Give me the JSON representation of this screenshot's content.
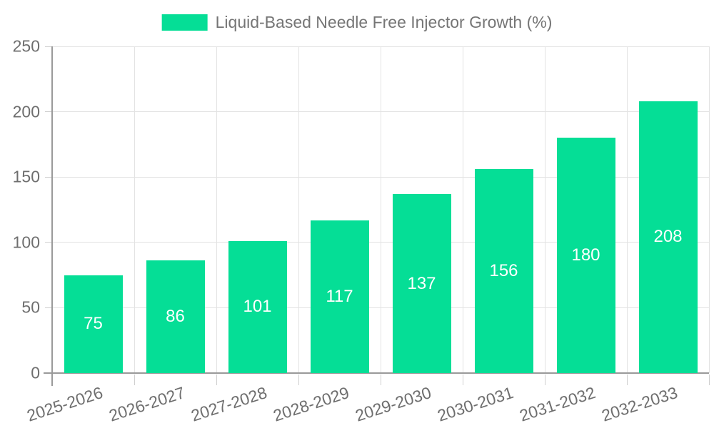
{
  "legend": {
    "label": "Liquid-Based Needle Free Injector Growth (%)"
  },
  "chart_data": {
    "type": "bar",
    "title": "Liquid-Based Needle Free Injector Growth (%)",
    "series": [
      {
        "name": "Liquid-Based Needle Free Injector Growth (%)",
        "values": [
          75,
          86,
          101,
          117,
          137,
          156,
          180,
          208
        ]
      }
    ],
    "categories": [
      "2025-2026",
      "2026-2027",
      "2027-2028",
      "2028-2029",
      "2029-2030",
      "2030-2031",
      "2031-2032",
      "2032-2033"
    ],
    "value_labels": [
      75,
      86,
      101,
      117,
      137,
      156,
      180,
      208
    ],
    "value_label_position": "inside-center",
    "xlabel": "",
    "ylabel": "",
    "ylim": [
      0,
      250
    ],
    "yticks": [
      0,
      50,
      100,
      150,
      200,
      250
    ],
    "grid": true,
    "legend_position": "top-center",
    "x_tick_rotation_deg": -18,
    "colors": {
      "bar": "#05de96",
      "grid": "#e3e3e3",
      "axis_line": "#9a9a9a",
      "tick_mark": "#cfcfcf",
      "tick_text": "#6e6e6e",
      "legend_text": "#757575",
      "value_text": "#ffffff",
      "background": "#ffffff"
    }
  }
}
